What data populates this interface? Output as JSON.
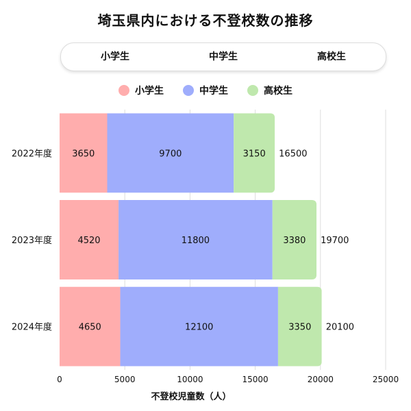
{
  "title": "埼玉県内における不登校数の推移",
  "tabs": [
    {
      "label": "小学生"
    },
    {
      "label": "中学生"
    },
    {
      "label": "高校生"
    }
  ],
  "chart_data": {
    "type": "bar",
    "orientation": "horizontal",
    "stacked": true,
    "categories": [
      "2022年度",
      "2023年度",
      "2024年度"
    ],
    "series": [
      {
        "name": "小学生",
        "color": "#ffadad",
        "values": [
          3650,
          4520,
          4650
        ]
      },
      {
        "name": "中学生",
        "color": "#9fadfc",
        "values": [
          9700,
          11800,
          12100
        ]
      },
      {
        "name": "高校生",
        "color": "#bfe8ad",
        "values": [
          3150,
          3380,
          3350
        ]
      }
    ],
    "totals": [
      16500,
      19700,
      20100
    ],
    "xlabel": "不登校児童数（人）",
    "xlim": [
      0,
      25000
    ],
    "xticks": [
      "0",
      "5000",
      "10000",
      "15000",
      "20000",
      "25000"
    ],
    "grid": true,
    "legend_position": "top"
  }
}
